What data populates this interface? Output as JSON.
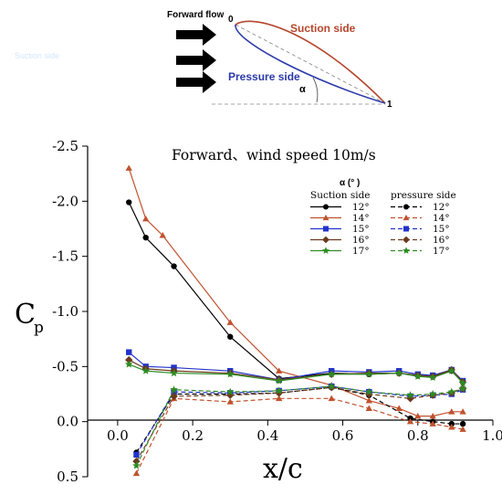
{
  "diagram": {
    "forward_flow": "Forward flow",
    "leading_edge": "0",
    "trailing_edge": "1",
    "suction_side": "Suction side",
    "pressure_side": "Pressure side",
    "alpha": "α",
    "watermark": "Suction side",
    "colors": {
      "suction": "#b5452c",
      "pressure": "#2b3aa8"
    }
  },
  "chart_data": {
    "type": "line",
    "title": "Forward、wind speed 10m/s",
    "xlabel": "x/c",
    "ylabel": "Cp",
    "xlim": [
      -0.08,
      1.0
    ],
    "ylim": [
      0.5,
      -2.5
    ],
    "y_reversed": true,
    "x_ticks": [
      0.0,
      0.2,
      0.4,
      0.6,
      0.8,
      1.0
    ],
    "x_tick_labels": [
      "0.0",
      "0.2",
      "0.4",
      "0.6",
      "0.8",
      "1.0"
    ],
    "y_ticks": [
      -2.5,
      -2.0,
      -1.5,
      -1.0,
      -0.5,
      0.0,
      0.5
    ],
    "y_tick_labels": [
      "-2.5",
      "-2.0",
      "-1.5",
      "-1.0",
      "-0.5",
      "0.0",
      "0.5"
    ],
    "grid": false,
    "legend": {
      "title": "α (° )",
      "placement": "top-right",
      "col1_header": "Suction side",
      "col2_header": "pressure side"
    },
    "series": [
      {
        "name": "12°",
        "side": "suction",
        "color": "#000000",
        "marker": "circle",
        "dash": "solid",
        "x": [
          0.03,
          0.075,
          0.15,
          0.3,
          0.43,
          0.57,
          0.67,
          0.75,
          0.8,
          0.84,
          0.89,
          0.92
        ],
        "y": [
          -1.99,
          -1.67,
          -1.41,
          -0.77,
          -0.39,
          -0.44,
          -0.43,
          -0.44,
          -0.42,
          -0.41,
          -0.46,
          -0.36
        ]
      },
      {
        "name": "14°",
        "side": "suction",
        "color": "#c0522f",
        "marker": "triangle",
        "dash": "solid",
        "x": [
          0.03,
          0.075,
          0.12,
          0.3,
          0.43,
          0.57,
          0.67,
          0.75,
          0.8,
          0.84,
          0.89,
          0.92
        ],
        "y": [
          -2.3,
          -1.84,
          -1.69,
          -0.9,
          -0.46,
          -0.33,
          -0.19,
          -0.12,
          -0.05,
          -0.05,
          -0.09,
          -0.09
        ]
      },
      {
        "name": "15°",
        "side": "suction",
        "color": "#2233cc",
        "marker": "square",
        "dash": "solid",
        "x": [
          0.03,
          0.075,
          0.15,
          0.3,
          0.43,
          0.57,
          0.67,
          0.75,
          0.8,
          0.84,
          0.89,
          0.92
        ],
        "y": [
          -0.63,
          -0.5,
          -0.49,
          -0.46,
          -0.38,
          -0.46,
          -0.45,
          -0.46,
          -0.43,
          -0.42,
          -0.47,
          -0.37
        ]
      },
      {
        "name": "16°",
        "side": "suction",
        "color": "#6b3a1e",
        "marker": "diamond",
        "dash": "solid",
        "x": [
          0.03,
          0.075,
          0.15,
          0.3,
          0.43,
          0.57,
          0.67,
          0.75,
          0.8,
          0.84,
          0.89,
          0.92
        ],
        "y": [
          -0.56,
          -0.48,
          -0.46,
          -0.44,
          -0.38,
          -0.43,
          -0.44,
          -0.44,
          -0.42,
          -0.41,
          -0.47,
          -0.36
        ]
      },
      {
        "name": "17°",
        "side": "suction",
        "color": "#2e8b22",
        "marker": "star",
        "dash": "solid",
        "x": [
          0.03,
          0.075,
          0.15,
          0.3,
          0.43,
          0.57,
          0.67,
          0.75,
          0.8,
          0.84,
          0.89,
          0.92
        ],
        "y": [
          -0.52,
          -0.46,
          -0.44,
          -0.43,
          -0.37,
          -0.43,
          -0.43,
          -0.44,
          -0.41,
          -0.4,
          -0.46,
          -0.35
        ]
      },
      {
        "name": "12°",
        "side": "pressure",
        "color": "#000000",
        "marker": "circle",
        "dash": "dashed",
        "x": [
          0.05,
          0.15,
          0.3,
          0.43,
          0.57,
          0.67,
          0.78,
          0.84,
          0.89,
          0.92
        ],
        "y": [
          0.28,
          -0.25,
          -0.25,
          -0.26,
          -0.31,
          -0.24,
          -0.03,
          0.0,
          0.02,
          0.02
        ]
      },
      {
        "name": "14°",
        "side": "pressure",
        "color": "#c0522f",
        "marker": "triangle",
        "dash": "dashed",
        "x": [
          0.05,
          0.15,
          0.3,
          0.43,
          0.57,
          0.67,
          0.78,
          0.84,
          0.89,
          0.92
        ],
        "y": [
          0.47,
          -0.21,
          -0.18,
          -0.21,
          -0.21,
          -0.12,
          0.0,
          0.02,
          0.05,
          0.07
        ]
      },
      {
        "name": "15°",
        "side": "pressure",
        "color": "#2233cc",
        "marker": "square",
        "dash": "dashed",
        "x": [
          0.05,
          0.15,
          0.3,
          0.43,
          0.57,
          0.67,
          0.78,
          0.84,
          0.89,
          0.92
        ],
        "y": [
          0.3,
          -0.27,
          -0.26,
          -0.28,
          -0.32,
          -0.27,
          -0.23,
          -0.24,
          -0.25,
          -0.29
        ]
      },
      {
        "name": "16°",
        "side": "pressure",
        "color": "#6b3a1e",
        "marker": "diamond",
        "dash": "dashed",
        "x": [
          0.05,
          0.15,
          0.3,
          0.43,
          0.57,
          0.67,
          0.78,
          0.84,
          0.89,
          0.92
        ],
        "y": [
          0.36,
          -0.23,
          -0.24,
          -0.26,
          -0.31,
          -0.25,
          -0.21,
          -0.24,
          -0.26,
          -0.3
        ]
      },
      {
        "name": "17°",
        "side": "pressure",
        "color": "#2e8b22",
        "marker": "star",
        "dash": "dashed",
        "x": [
          0.05,
          0.15,
          0.3,
          0.43,
          0.57,
          0.67,
          0.78,
          0.84,
          0.89,
          0.92
        ],
        "y": [
          0.4,
          -0.29,
          -0.27,
          -0.28,
          -0.32,
          -0.27,
          -0.24,
          -0.25,
          -0.27,
          -0.3
        ]
      }
    ]
  }
}
